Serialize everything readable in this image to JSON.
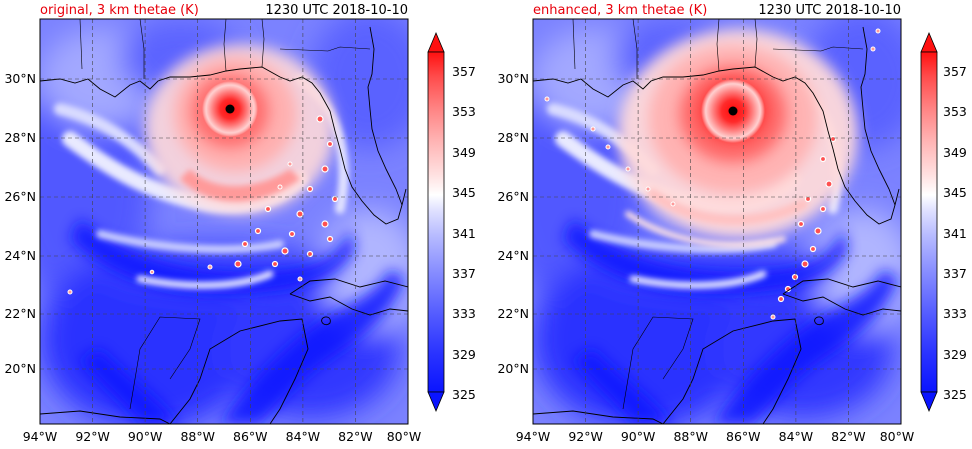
{
  "panels": [
    {
      "id": "original",
      "title_left": "original, 3 km thetae (K)",
      "title_right": "1230 UTC 2018-10-10"
    },
    {
      "id": "enhanced",
      "title_left": "enhanced, 3 km thetae (K)",
      "title_right": "1230 UTC 2018-10-10"
    }
  ],
  "axes": {
    "lon_ticks": [
      "94°W",
      "92°W",
      "90°W",
      "88°W",
      "86°W",
      "84°W",
      "82°W",
      "80°W"
    ],
    "lat_ticks": [
      "30°N",
      "28°N",
      "26°N",
      "24°N",
      "22°N",
      "20°N"
    ]
  },
  "colorbar": {
    "tick_labels": [
      "357",
      "353",
      "349",
      "345",
      "341",
      "337",
      "333",
      "329",
      "325"
    ],
    "min": 325,
    "max": 359,
    "extend": "both"
  },
  "colors": {
    "title_accent": "#e8000b",
    "deep_blue": "#0a14ff",
    "mid_blue": "#6f77ff",
    "pale_blue": "#c7cbff",
    "white": "#ffffff",
    "pale_red": "#ffc3c3",
    "mid_red": "#ff6f6f",
    "deep_red": "#ff1010"
  },
  "storm_center_marker": "black-dot"
}
